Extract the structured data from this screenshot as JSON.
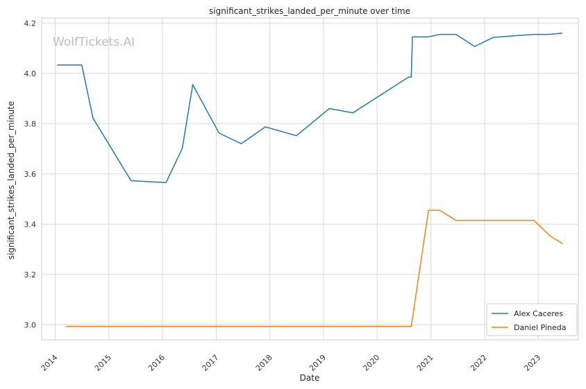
{
  "watermark": "WolfTickets.AI",
  "chart_data": {
    "type": "line",
    "title": "significant_strikes_landed_per_minute over time",
    "xlabel": "Date",
    "ylabel": "significant_strikes_landed_per_minute",
    "xlim": [
      "2013-10-01",
      "2023-10-01"
    ],
    "ylim": [
      2.94,
      4.22
    ],
    "x_ticks": [
      "2014",
      "2015",
      "2016",
      "2017",
      "2018",
      "2019",
      "2020",
      "2021",
      "2022",
      "2023"
    ],
    "y_ticks": [
      "3.0",
      "3.2",
      "3.4",
      "3.6",
      "3.8",
      "4.0",
      "4.2"
    ],
    "y_tick_values": [
      3.0,
      3.2,
      3.4,
      3.6,
      3.8,
      4.0,
      4.2
    ],
    "grid": true,
    "legend_position": "lower-right",
    "series": [
      {
        "name": "Alex Caceres",
        "color": "#1f77b4",
        "points": [
          [
            "2014-01-15",
            4.033
          ],
          [
            "2014-07-01",
            4.033
          ],
          [
            "2014-09-15",
            3.822
          ],
          [
            "2015-06-01",
            3.573
          ],
          [
            "2016-01-25",
            3.565
          ],
          [
            "2016-05-15",
            3.702
          ],
          [
            "2016-07-25",
            3.955
          ],
          [
            "2017-01-20",
            3.762
          ],
          [
            "2017-06-20",
            3.72
          ],
          [
            "2017-12-01",
            3.787
          ],
          [
            "2018-07-01",
            3.752
          ],
          [
            "2019-02-10",
            3.86
          ],
          [
            "2019-07-20",
            3.843
          ],
          [
            "2020-08-01",
            3.985
          ],
          [
            "2020-08-20",
            3.985
          ],
          [
            "2020-08-28",
            4.145
          ],
          [
            "2020-12-15",
            4.145
          ],
          [
            "2021-03-01",
            4.155
          ],
          [
            "2021-06-20",
            4.155
          ],
          [
            "2021-10-25",
            4.107
          ],
          [
            "2022-03-01",
            4.143
          ],
          [
            "2022-12-01",
            4.155
          ],
          [
            "2023-03-15",
            4.155
          ],
          [
            "2023-06-15",
            4.16
          ]
        ]
      },
      {
        "name": "Daniel Pineda",
        "color": "#ff7f0e",
        "points": [
          [
            "2014-03-15",
            2.993
          ],
          [
            "2020-08-20",
            2.993
          ],
          [
            "2020-12-15",
            3.455
          ],
          [
            "2021-03-01",
            3.455
          ],
          [
            "2021-06-20",
            3.415
          ],
          [
            "2022-12-01",
            3.415
          ],
          [
            "2023-03-25",
            3.352
          ],
          [
            "2023-06-15",
            3.323
          ]
        ]
      }
    ]
  }
}
